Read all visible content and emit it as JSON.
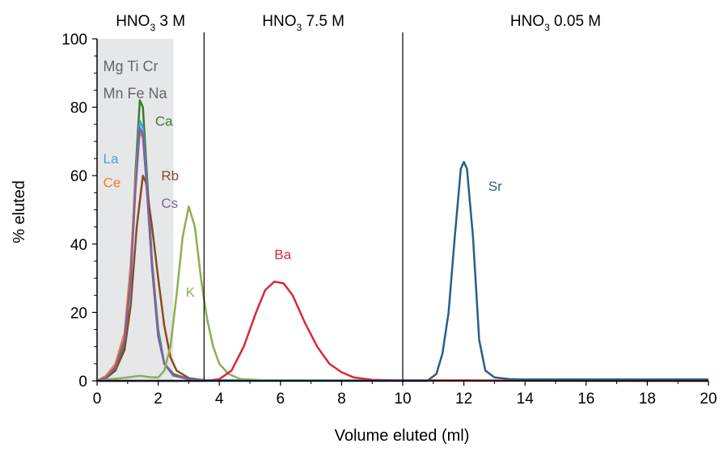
{
  "chart_data": {
    "type": "line",
    "xlabel": "Volume eluted (ml)",
    "ylabel": "% eluted",
    "xlim": [
      0,
      20
    ],
    "ylim": [
      0,
      100
    ],
    "xticks": [
      0,
      2,
      4,
      6,
      8,
      10,
      12,
      14,
      16,
      18,
      20
    ],
    "yticks": [
      0,
      20,
      40,
      60,
      80,
      100
    ],
    "grid": false,
    "shaded_region": {
      "x": [
        0,
        2.5
      ],
      "color": "#e6e7e9"
    },
    "dividers": [
      3.5,
      10
    ],
    "sections": [
      {
        "label_main": "HNO",
        "label_sub": "3",
        "label_rest": " 3 M",
        "x_center": 1.75
      },
      {
        "label_main": "HNO",
        "label_sub": "3",
        "label_rest": " 7.5 M",
        "x_center": 6.75
      },
      {
        "label_main": "HNO",
        "label_sub": "3",
        "label_rest": " 0.05 M",
        "x_center": 15
      }
    ],
    "group_labels": [
      {
        "text": "Mg Ti Cr",
        "x": 0.2,
        "y": 92
      },
      {
        "text": "Mn Fe Na",
        "x": 0.2,
        "y": 84
      }
    ],
    "series": [
      {
        "name": "Ca",
        "color": "#3e7a2e",
        "label_pos": [
          1.9,
          76
        ],
        "points": [
          [
            0,
            0
          ],
          [
            0.3,
            1
          ],
          [
            0.6,
            3
          ],
          [
            0.9,
            10
          ],
          [
            1.1,
            30
          ],
          [
            1.25,
            60
          ],
          [
            1.4,
            82
          ],
          [
            1.5,
            80
          ],
          [
            1.6,
            65
          ],
          [
            1.8,
            35
          ],
          [
            2.0,
            15
          ],
          [
            2.2,
            5
          ],
          [
            2.5,
            2
          ],
          [
            3,
            0.5
          ],
          [
            3.5,
            0.2
          ],
          [
            20,
            0
          ]
        ]
      },
      {
        "name": "La",
        "color": "#3ba7d1",
        "label_pos": [
          0.2,
          65
        ],
        "points": [
          [
            0,
            0
          ],
          [
            0.3,
            1
          ],
          [
            0.6,
            4
          ],
          [
            0.9,
            12
          ],
          [
            1.1,
            32
          ],
          [
            1.25,
            58
          ],
          [
            1.4,
            76
          ],
          [
            1.5,
            74
          ],
          [
            1.6,
            62
          ],
          [
            1.8,
            34
          ],
          [
            2.0,
            14
          ],
          [
            2.2,
            5
          ],
          [
            2.5,
            1.5
          ],
          [
            3,
            0.5
          ],
          [
            3.5,
            0.2
          ],
          [
            20,
            0
          ]
        ]
      },
      {
        "name": "Ce",
        "color": "#f07f2f",
        "label_pos": [
          0.2,
          58
        ],
        "points": [
          [
            0,
            0
          ],
          [
            0.3,
            1.5
          ],
          [
            0.6,
            5
          ],
          [
            0.9,
            14
          ],
          [
            1.1,
            34
          ],
          [
            1.25,
            58
          ],
          [
            1.4,
            73
          ],
          [
            1.5,
            71
          ],
          [
            1.6,
            60
          ],
          [
            1.8,
            33
          ],
          [
            2.0,
            13
          ],
          [
            2.2,
            5
          ],
          [
            2.5,
            1.5
          ],
          [
            3,
            0.5
          ],
          [
            3.5,
            0.2
          ],
          [
            20,
            0
          ]
        ]
      },
      {
        "name": "Rb",
        "color": "#8a4a23",
        "label_pos": [
          2.1,
          60
        ],
        "points": [
          [
            0,
            0
          ],
          [
            0.3,
            0.8
          ],
          [
            0.6,
            3
          ],
          [
            0.9,
            9
          ],
          [
            1.1,
            22
          ],
          [
            1.3,
            45
          ],
          [
            1.5,
            60
          ],
          [
            1.6,
            58
          ],
          [
            1.8,
            45
          ],
          [
            2.0,
            30
          ],
          [
            2.2,
            16
          ],
          [
            2.4,
            7
          ],
          [
            2.6,
            3
          ],
          [
            3,
            0.8
          ],
          [
            3.5,
            0.2
          ],
          [
            20,
            0
          ]
        ]
      },
      {
        "name": "Cs",
        "color": "#7b62a8",
        "label_pos": [
          2.1,
          52
        ],
        "points": [
          [
            0,
            0
          ],
          [
            0.3,
            1
          ],
          [
            0.6,
            4
          ],
          [
            0.9,
            12
          ],
          [
            1.1,
            30
          ],
          [
            1.25,
            55
          ],
          [
            1.4,
            74
          ],
          [
            1.5,
            72
          ],
          [
            1.6,
            60
          ],
          [
            1.8,
            33
          ],
          [
            2.0,
            13
          ],
          [
            2.2,
            5
          ],
          [
            2.5,
            1.5
          ],
          [
            3,
            0.5
          ],
          [
            3.5,
            0.2
          ],
          [
            20,
            0
          ]
        ]
      },
      {
        "name": "K",
        "color": "#8fae52",
        "label_pos": [
          2.9,
          26
        ],
        "points": [
          [
            0,
            0
          ],
          [
            0.5,
            0.5
          ],
          [
            1.0,
            1
          ],
          [
            1.4,
            1.5
          ],
          [
            1.8,
            1
          ],
          [
            2.0,
            1
          ],
          [
            2.2,
            3
          ],
          [
            2.4,
            10
          ],
          [
            2.6,
            25
          ],
          [
            2.8,
            42
          ],
          [
            3.0,
            51
          ],
          [
            3.2,
            45
          ],
          [
            3.4,
            30
          ],
          [
            3.6,
            18
          ],
          [
            3.8,
            10
          ],
          [
            4.0,
            5
          ],
          [
            4.3,
            2
          ],
          [
            4.7,
            0.5
          ],
          [
            5.5,
            0.2
          ],
          [
            20,
            0
          ]
        ]
      },
      {
        "name": "Ba",
        "color": "#d6293e",
        "label_pos": [
          5.8,
          37
        ],
        "points": [
          [
            0,
            0
          ],
          [
            3.6,
            0
          ],
          [
            4.0,
            0.5
          ],
          [
            4.4,
            3
          ],
          [
            4.8,
            10
          ],
          [
            5.2,
            20
          ],
          [
            5.5,
            26.5
          ],
          [
            5.8,
            29
          ],
          [
            6.1,
            28.5
          ],
          [
            6.4,
            25
          ],
          [
            6.8,
            17
          ],
          [
            7.2,
            10
          ],
          [
            7.6,
            5
          ],
          [
            8.0,
            2.5
          ],
          [
            8.4,
            1
          ],
          [
            9.0,
            0.3
          ],
          [
            10,
            0.1
          ],
          [
            20,
            0
          ]
        ]
      },
      {
        "name": "Sr",
        "color": "#265f8c",
        "label_pos": [
          12.8,
          57
        ],
        "points": [
          [
            0,
            0
          ],
          [
            10.8,
            0
          ],
          [
            11.1,
            2
          ],
          [
            11.3,
            8
          ],
          [
            11.5,
            20
          ],
          [
            11.7,
            42
          ],
          [
            11.9,
            62
          ],
          [
            12.0,
            64
          ],
          [
            12.1,
            62
          ],
          [
            12.3,
            42
          ],
          [
            12.5,
            12
          ],
          [
            12.7,
            3
          ],
          [
            13.0,
            1
          ],
          [
            13.5,
            0.5
          ],
          [
            14.0,
            0.4
          ],
          [
            20,
            0.4
          ]
        ]
      }
    ]
  }
}
